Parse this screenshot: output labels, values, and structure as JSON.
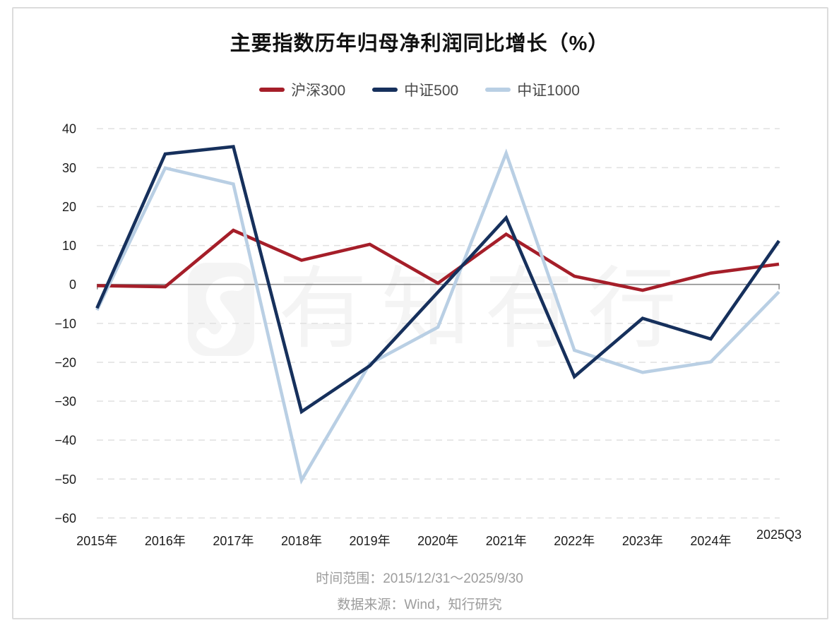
{
  "card": {
    "title": "主要指数历年归母净利润同比增长（%）",
    "footer": {
      "line1": "时间范围：2015/12/31～2025/9/30",
      "line2": "数据来源：Wind，知行研究"
    }
  },
  "watermark": {
    "text": "有知有行",
    "logo": "youzhiyouxing-logo"
  },
  "colors": {
    "hs300": "#A51E29",
    "zz500": "#16305C",
    "zz1000": "#B9CFE4",
    "grid": "#e0e0e0",
    "zero_axis": "#8c8c8c",
    "axis_text": "#1c1c1c",
    "card_border": "#dcdcdc",
    "footer_text": "#9c9c9c"
  },
  "chart_data": {
    "type": "line",
    "title": "主要指数历年归母净利润同比增长（%）",
    "categories": [
      "2015年",
      "2016年",
      "2017年",
      "2018年",
      "2019年",
      "2020年",
      "2021年",
      "2022年",
      "2023年",
      "2024年",
      "2025Q3"
    ],
    "series": [
      {
        "name": "沪深300",
        "color": "#A51E29",
        "values": [
          -0.3,
          -0.6,
          13.9,
          6.2,
          10.3,
          0.3,
          12.9,
          2.1,
          -1.5,
          2.9,
          5.2
        ]
      },
      {
        "name": "中证500",
        "color": "#16305C",
        "values": [
          -6.1,
          33.5,
          35.4,
          -32.7,
          -20.9,
          -2.0,
          17.1,
          -23.7,
          -8.7,
          -14.0,
          11.2
        ]
      },
      {
        "name": "中证1000",
        "color": "#B9CFE4",
        "values": [
          -6.6,
          29.9,
          25.8,
          -50.3,
          -20.4,
          -11.0,
          33.7,
          -16.9,
          -22.6,
          -19.9,
          -1.9
        ]
      }
    ],
    "ylim": [
      -60,
      40
    ],
    "ytick_step": 10,
    "yticks": [
      40,
      30,
      20,
      10,
      0,
      -10,
      -20,
      -30,
      -40,
      -50,
      -60
    ],
    "xlabel": "",
    "ylabel": "",
    "grid": "horizontal-dashed",
    "legend_position": "top",
    "zero_axis": true
  }
}
